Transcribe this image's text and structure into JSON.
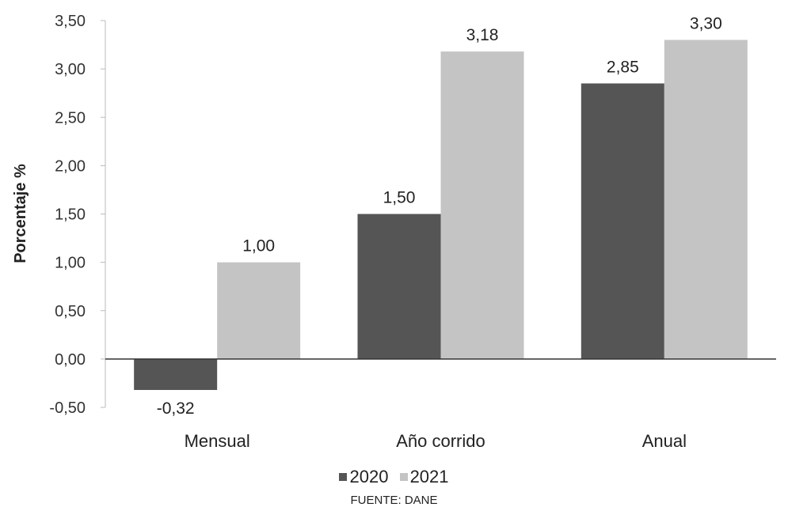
{
  "chart_data": {
    "type": "bar",
    "categories": [
      "Mensual",
      "Año corrido",
      "Anual"
    ],
    "series": [
      {
        "name": "2020",
        "values": [
          -0.32,
          1.5,
          2.85
        ],
        "labels": [
          "-0,32",
          "1,50",
          "2,85"
        ]
      },
      {
        "name": "2021",
        "values": [
          1.0,
          3.18,
          3.3
        ],
        "labels": [
          "1,00",
          "3,18",
          "3,30"
        ]
      }
    ],
    "colors": {
      "2020": "#555555",
      "2021": "#c4c4c4"
    },
    "ylabel": "Porcentaje %",
    "ylim": [
      -0.5,
      3.5
    ],
    "yticks": [
      -0.5,
      0,
      0.5,
      1,
      1.5,
      2,
      2.5,
      3,
      3.5
    ],
    "ytick_labels": [
      "-0,50",
      "0,00",
      "0,50",
      "1,00",
      "1,50",
      "2,00",
      "2,50",
      "3,00",
      "3,50"
    ],
    "grid": false,
    "legend_position": "bottom",
    "source": "FUENTE: DANE"
  }
}
